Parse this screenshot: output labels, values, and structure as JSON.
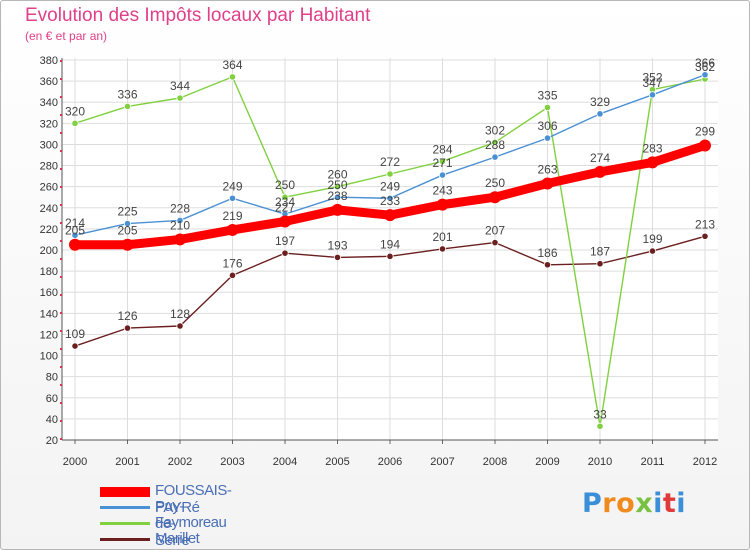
{
  "title": "Evolution des Impôts locaux par Habitant",
  "subtitle": "(en € et par an)",
  "logo_text": "Proxiti",
  "chart_data": {
    "type": "line",
    "title": "Evolution des Impôts locaux par Habitant",
    "subtitle": "(en € et par an)",
    "xlabel": "",
    "ylabel": "",
    "categories": [
      "2000",
      "2001",
      "2002",
      "2003",
      "2004",
      "2005",
      "2006",
      "2007",
      "2008",
      "2009",
      "2010",
      "2011",
      "2012"
    ],
    "ylim": [
      20,
      380
    ],
    "yticks": [
      20,
      40,
      60,
      80,
      100,
      120,
      140,
      160,
      180,
      200,
      220,
      240,
      260,
      280,
      300,
      320,
      340,
      360,
      380
    ],
    "grid": true,
    "legend_position": "bottom-left",
    "series": [
      {
        "name": "FOUSSAIS-PAYRé",
        "color": "#ff0000",
        "values": [
          205,
          205,
          210,
          219,
          227,
          238,
          233,
          243,
          250,
          263,
          274,
          283,
          299
        ]
      },
      {
        "name": "Puy-de-Serre",
        "color": "#4a90d4",
        "values": [
          214,
          225,
          228,
          249,
          234,
          250,
          249,
          271,
          288,
          306,
          329,
          347,
          366
        ]
      },
      {
        "name": "Faymoreau",
        "color": "#80d040",
        "values": [
          320,
          336,
          344,
          364,
          250,
          260,
          272,
          284,
          302,
          335,
          33,
          352,
          362
        ]
      },
      {
        "name": "Marillet",
        "color": "#6b1f1f",
        "values": [
          109,
          126,
          128,
          176,
          197,
          193,
          194,
          201,
          207,
          186,
          187,
          199,
          213
        ]
      }
    ]
  }
}
